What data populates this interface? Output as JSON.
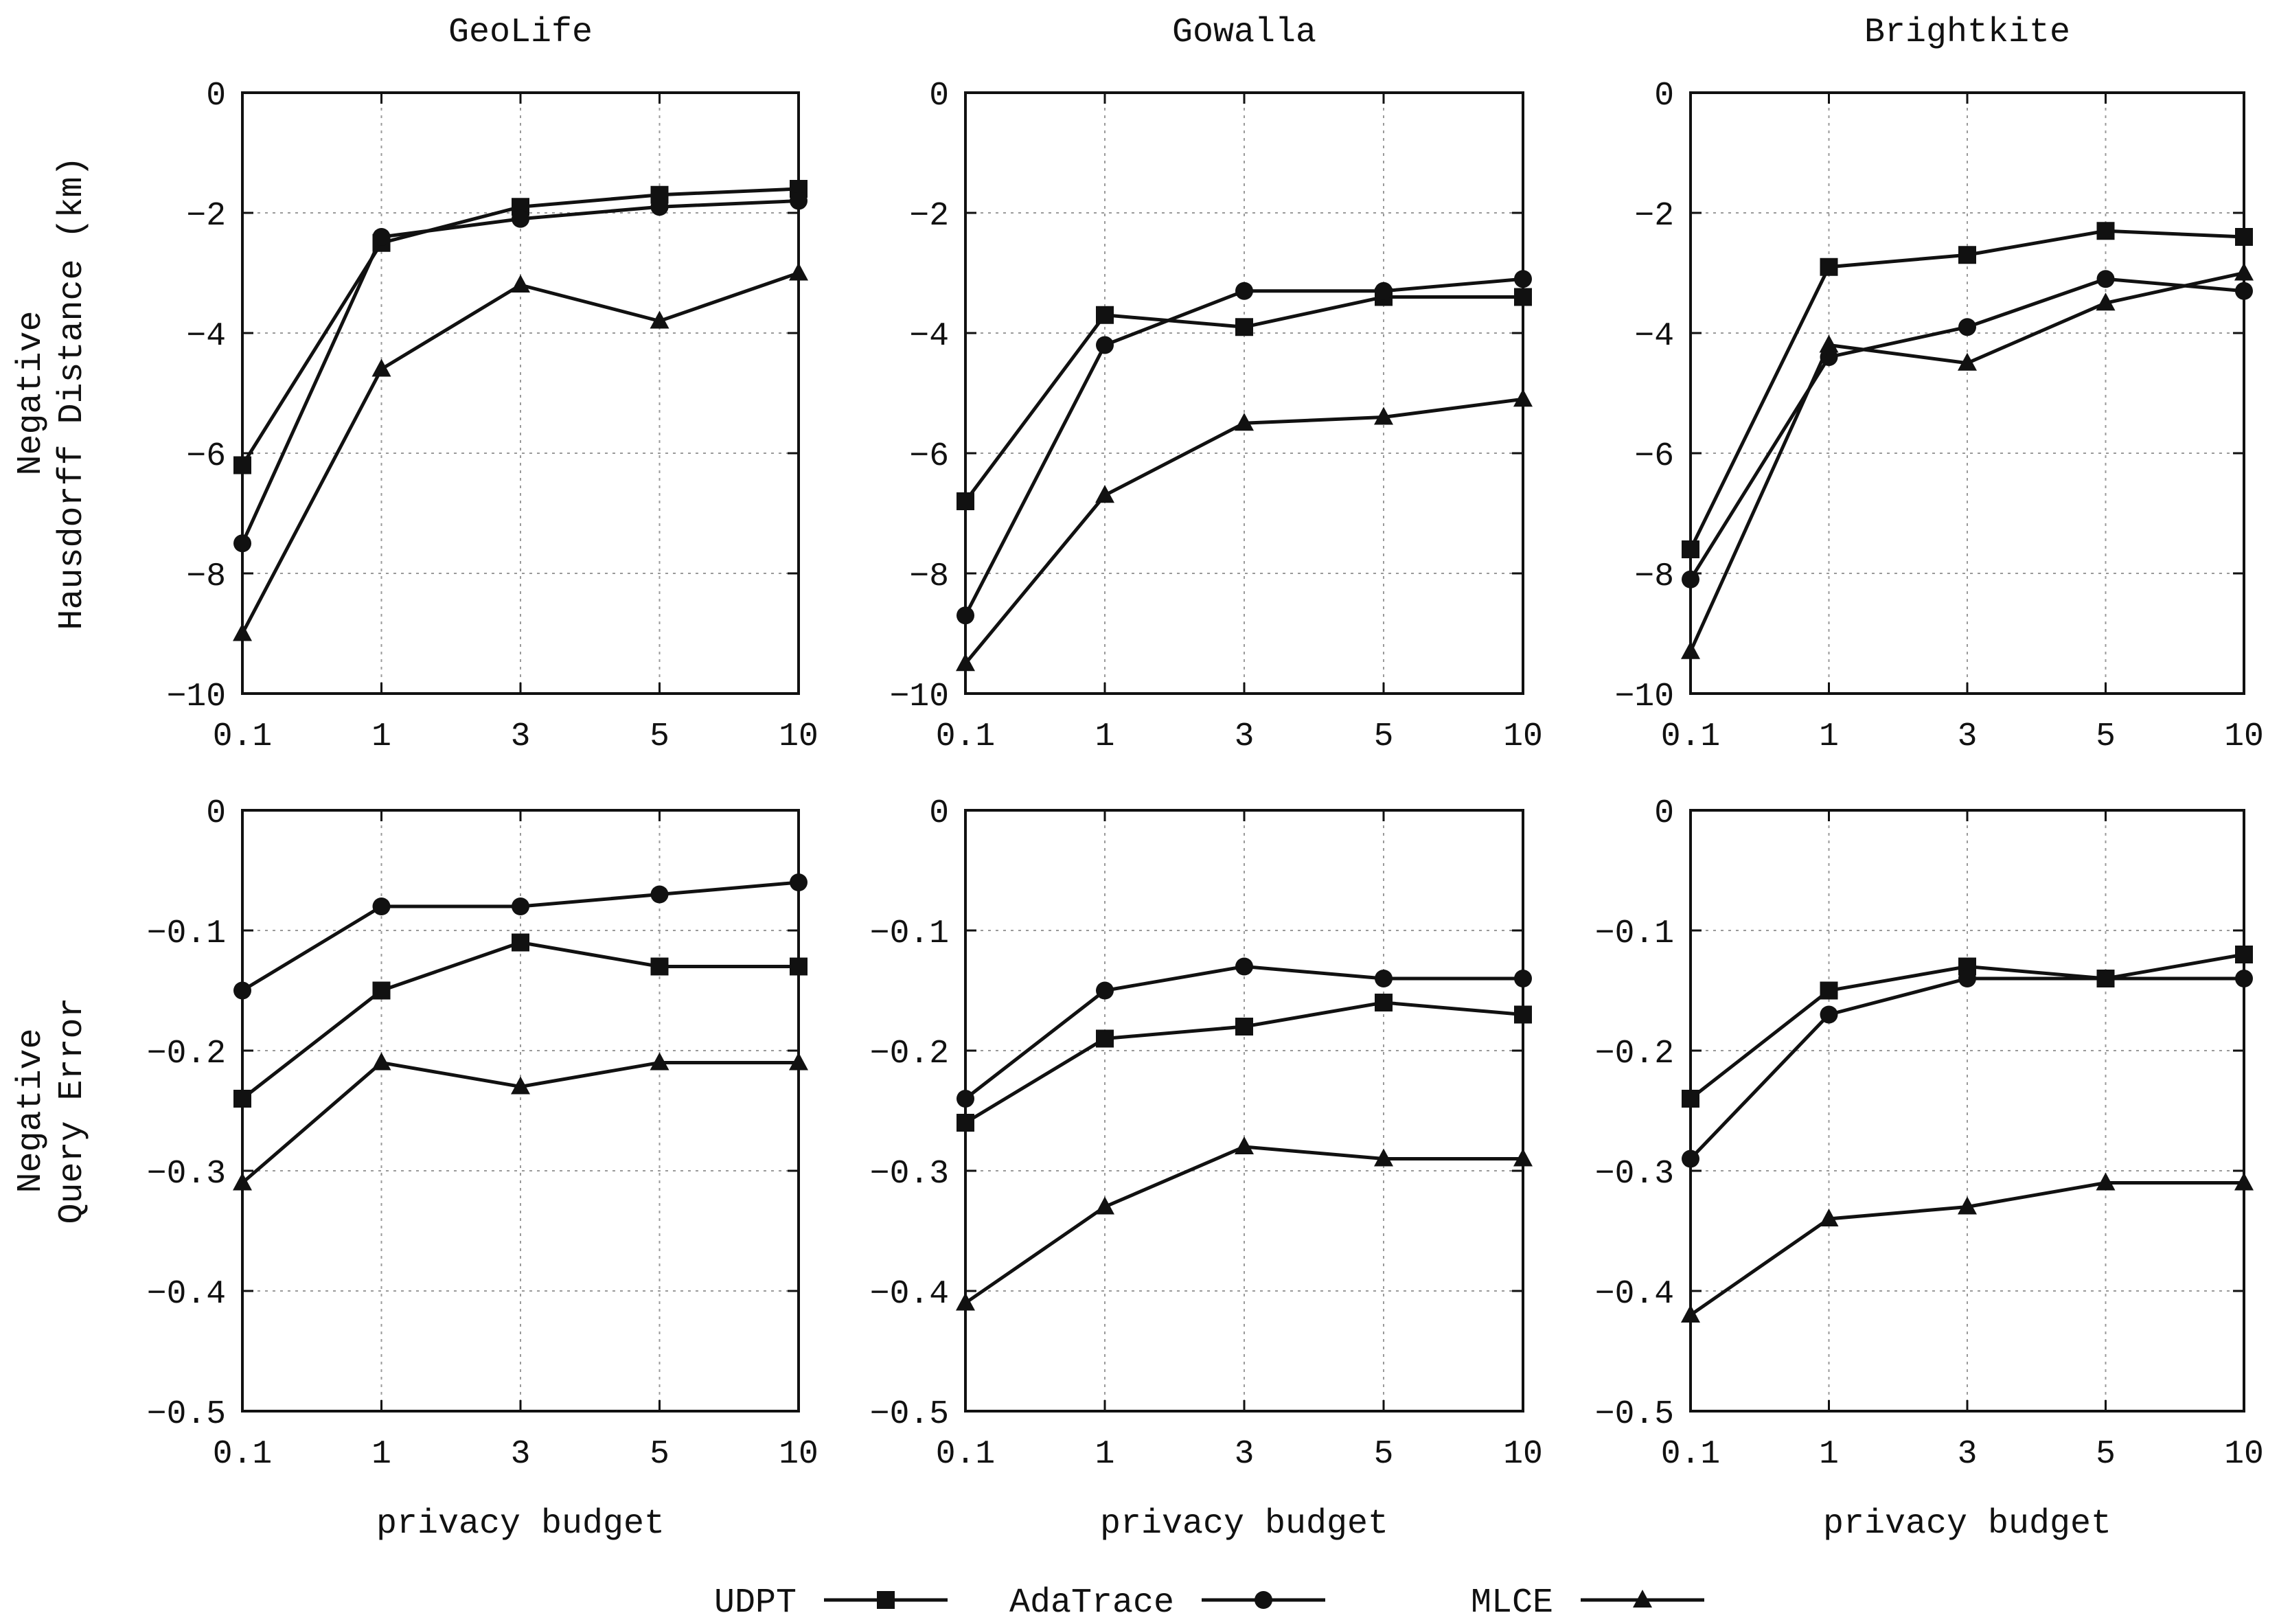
{
  "chart_data": [
    {
      "type": "line",
      "title": "GeoLife",
      "xlabel": "",
      "ylabel": [
        "Negative",
        "Hausdorff Distance (km)"
      ],
      "categories": [
        "0.1",
        "1",
        "3",
        "5",
        "10"
      ],
      "ylim": [
        -10,
        0
      ],
      "yticks": [
        0,
        -2,
        -4,
        -6,
        -8,
        -10
      ],
      "ytick_labels": [
        "0",
        "−2",
        "−4",
        "−6",
        "−8",
        "−10"
      ],
      "grid": true,
      "series": [
        {
          "name": "UDPT",
          "marker": "square",
          "values": [
            -6.2,
            -2.5,
            -1.9,
            -1.7,
            -1.6
          ]
        },
        {
          "name": "AdaTrace",
          "marker": "circle",
          "values": [
            -7.5,
            -2.4,
            -2.1,
            -1.9,
            -1.8
          ]
        },
        {
          "name": "MLCE",
          "marker": "triangle",
          "values": [
            -9.0,
            -4.6,
            -3.2,
            -3.8,
            -3.0
          ]
        }
      ]
    },
    {
      "type": "line",
      "title": "Gowalla",
      "xlabel": "",
      "ylabel": [],
      "categories": [
        "0.1",
        "1",
        "3",
        "5",
        "10"
      ],
      "ylim": [
        -10,
        0
      ],
      "yticks": [
        0,
        -2,
        -4,
        -6,
        -8,
        -10
      ],
      "ytick_labels": [
        "0",
        "−2",
        "−4",
        "−6",
        "−8",
        "−10"
      ],
      "grid": true,
      "series": [
        {
          "name": "UDPT",
          "marker": "square",
          "values": [
            -6.8,
            -3.7,
            -3.9,
            -3.4,
            -3.4
          ]
        },
        {
          "name": "AdaTrace",
          "marker": "circle",
          "values": [
            -8.7,
            -4.2,
            -3.3,
            -3.3,
            -3.1
          ]
        },
        {
          "name": "MLCE",
          "marker": "triangle",
          "values": [
            -9.5,
            -6.7,
            -5.5,
            -5.4,
            -5.1
          ]
        }
      ]
    },
    {
      "type": "line",
      "title": "Brightkite",
      "xlabel": "",
      "ylabel": [],
      "categories": [
        "0.1",
        "1",
        "3",
        "5",
        "10"
      ],
      "ylim": [
        -10,
        0
      ],
      "yticks": [
        0,
        -2,
        -4,
        -6,
        -8,
        -10
      ],
      "ytick_labels": [
        "0",
        "−2",
        "−4",
        "−6",
        "−8",
        "−10"
      ],
      "grid": true,
      "series": [
        {
          "name": "UDPT",
          "marker": "square",
          "values": [
            -7.6,
            -2.9,
            -2.7,
            -2.3,
            -2.4
          ]
        },
        {
          "name": "AdaTrace",
          "marker": "circle",
          "values": [
            -8.1,
            -4.4,
            -3.9,
            -3.1,
            -3.3
          ]
        },
        {
          "name": "MLCE",
          "marker": "triangle",
          "values": [
            -9.3,
            -4.2,
            -4.5,
            -3.5,
            -3.0
          ]
        }
      ]
    },
    {
      "type": "line",
      "title": "",
      "xlabel": "privacy budget",
      "ylabel": [
        "Negative",
        "Query Error"
      ],
      "categories": [
        "0.1",
        "1",
        "3",
        "5",
        "10"
      ],
      "ylim": [
        -0.5,
        0
      ],
      "yticks": [
        0,
        -0.1,
        -0.2,
        -0.3,
        -0.4,
        -0.5
      ],
      "ytick_labels": [
        "0",
        "−0.1",
        "−0.2",
        "−0.3",
        "−0.4",
        "−0.5"
      ],
      "grid": true,
      "series": [
        {
          "name": "UDPT",
          "marker": "square",
          "values": [
            -0.24,
            -0.15,
            -0.11,
            -0.13,
            -0.13
          ]
        },
        {
          "name": "AdaTrace",
          "marker": "circle",
          "values": [
            -0.15,
            -0.08,
            -0.08,
            -0.07,
            -0.06
          ]
        },
        {
          "name": "MLCE",
          "marker": "triangle",
          "values": [
            -0.31,
            -0.21,
            -0.23,
            -0.21,
            -0.21
          ]
        }
      ]
    },
    {
      "type": "line",
      "title": "",
      "xlabel": "privacy budget",
      "ylabel": [],
      "categories": [
        "0.1",
        "1",
        "3",
        "5",
        "10"
      ],
      "ylim": [
        -0.5,
        0
      ],
      "yticks": [
        0,
        -0.1,
        -0.2,
        -0.3,
        -0.4,
        -0.5
      ],
      "ytick_labels": [
        "0",
        "−0.1",
        "−0.2",
        "−0.3",
        "−0.4",
        "−0.5"
      ],
      "grid": true,
      "series": [
        {
          "name": "UDPT",
          "marker": "square",
          "values": [
            -0.26,
            -0.19,
            -0.18,
            -0.16,
            -0.17
          ]
        },
        {
          "name": "AdaTrace",
          "marker": "circle",
          "values": [
            -0.24,
            -0.15,
            -0.13,
            -0.14,
            -0.14
          ]
        },
        {
          "name": "MLCE",
          "marker": "triangle",
          "values": [
            -0.41,
            -0.33,
            -0.28,
            -0.29,
            -0.29
          ]
        }
      ]
    },
    {
      "type": "line",
      "title": "",
      "xlabel": "privacy budget",
      "ylabel": [],
      "categories": [
        "0.1",
        "1",
        "3",
        "5",
        "10"
      ],
      "ylim": [
        -0.5,
        0
      ],
      "yticks": [
        0,
        -0.1,
        -0.2,
        -0.3,
        -0.4,
        -0.5
      ],
      "ytick_labels": [
        "0",
        "−0.1",
        "−0.2",
        "−0.3",
        "−0.4",
        "−0.5"
      ],
      "grid": true,
      "series": [
        {
          "name": "UDPT",
          "marker": "square",
          "values": [
            -0.24,
            -0.15,
            -0.13,
            -0.14,
            -0.12
          ]
        },
        {
          "name": "AdaTrace",
          "marker": "circle",
          "values": [
            -0.29,
            -0.17,
            -0.14,
            -0.14,
            -0.14
          ]
        },
        {
          "name": "MLCE",
          "marker": "triangle",
          "values": [
            -0.42,
            -0.34,
            -0.33,
            -0.31,
            -0.31
          ]
        }
      ]
    }
  ],
  "legend": {
    "position": "bottom-center",
    "items": [
      {
        "label": "UDPT",
        "marker": "square"
      },
      {
        "label": "AdaTrace",
        "marker": "circle"
      },
      {
        "label": "MLCE",
        "marker": "triangle"
      }
    ]
  },
  "colors": {
    "line": "#111111",
    "grid": "#9a9a9a",
    "background": "#ffffff"
  }
}
